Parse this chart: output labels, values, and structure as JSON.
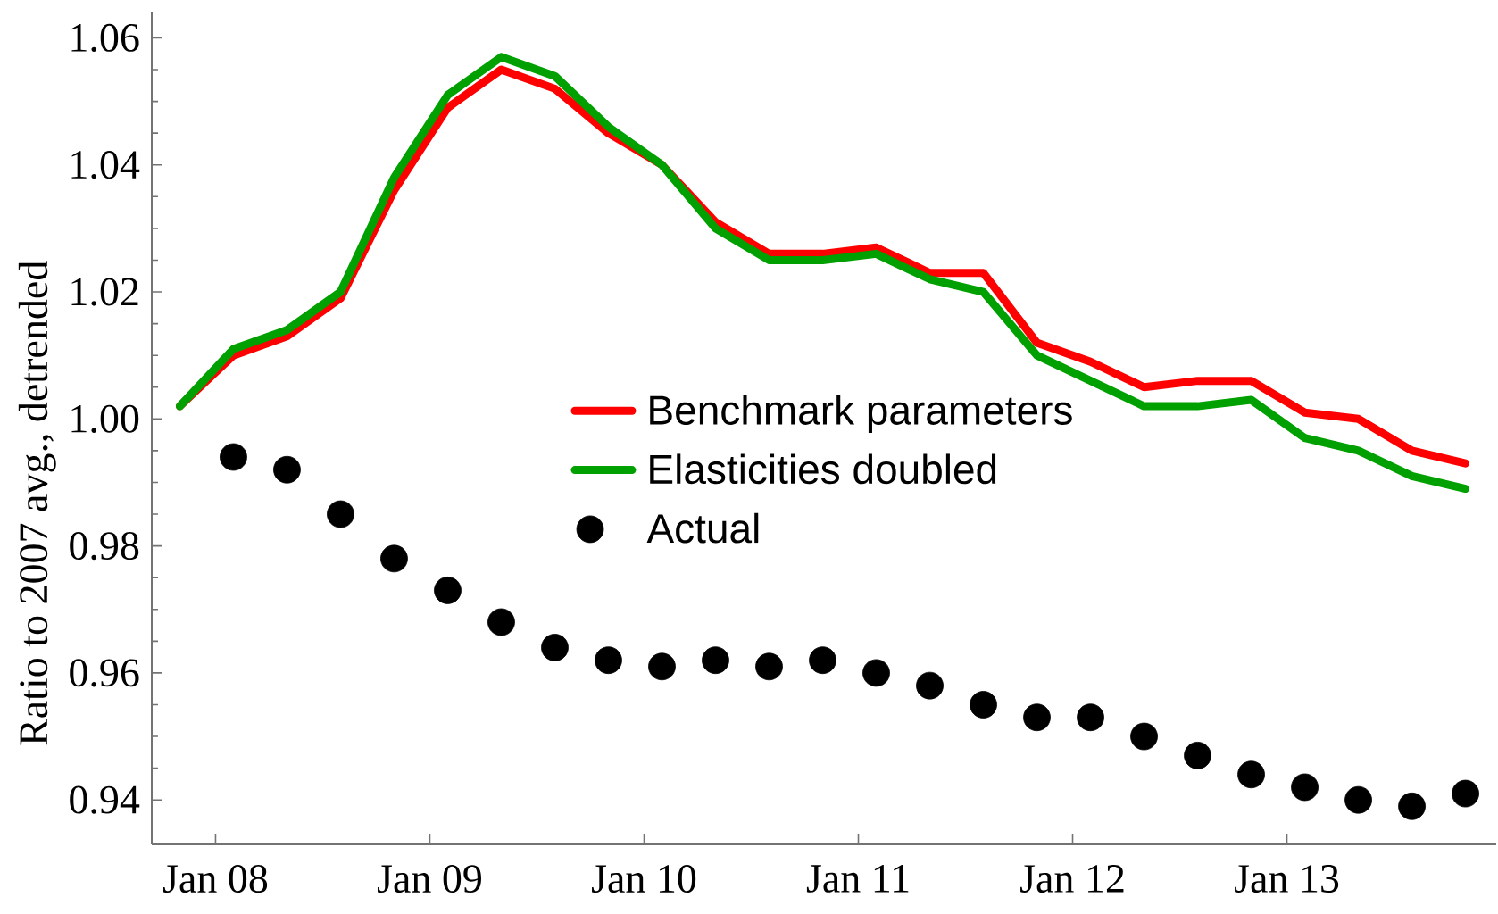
{
  "chart_data": {
    "type": "line",
    "ylabel": "Ratio to 2007 avg., detrended",
    "x": [
      "2007-11",
      "2008-02",
      "2008-05",
      "2008-08",
      "2008-11",
      "2009-02",
      "2009-05",
      "2009-08",
      "2009-11",
      "2010-02",
      "2010-05",
      "2010-08",
      "2010-11",
      "2011-02",
      "2011-05",
      "2011-08",
      "2011-11",
      "2012-02",
      "2012-05",
      "2012-08",
      "2012-11",
      "2013-02",
      "2013-05",
      "2013-08",
      "2013-11"
    ],
    "xlim": [
      "2007-09-14",
      "2013-12-23"
    ],
    "xticks": [
      {
        "value": "2008-01",
        "label": "Jan 08"
      },
      {
        "value": "2009-01",
        "label": "Jan 09"
      },
      {
        "value": "2010-01",
        "label": "Jan 10"
      },
      {
        "value": "2011-01",
        "label": "Jan 11"
      },
      {
        "value": "2012-01",
        "label": "Jan 12"
      },
      {
        "value": "2013-01",
        "label": "Jan 13"
      }
    ],
    "ylim": [
      0.933,
      1.064
    ],
    "yticks": [
      0.94,
      0.96,
      0.98,
      {
        "value": 1,
        "label": "1.00"
      },
      1.02,
      1.04,
      1.06
    ],
    "legend": "center",
    "series": [
      {
        "name": "Benchmark parameters",
        "type": "line",
        "color": "#ff0000",
        "values": [
          1.002,
          1.01,
          1.013,
          1.019,
          1.036,
          1.049,
          1.055,
          1.052,
          1.045,
          1.04,
          1.031,
          1.026,
          1.026,
          1.027,
          1.023,
          1.023,
          1.012,
          1.009,
          1.005,
          1.006,
          1.006,
          1.001,
          1.0,
          0.995,
          0.993
        ]
      },
      {
        "name": "Elasticities doubled",
        "type": "line",
        "color": "#00a000",
        "values": [
          1.002,
          1.011,
          1.014,
          1.02,
          1.038,
          1.051,
          1.057,
          1.054,
          1.046,
          1.04,
          1.03,
          1.025,
          1.025,
          1.026,
          1.022,
          1.02,
          1.01,
          1.006,
          1.002,
          1.002,
          1.003,
          0.997,
          0.995,
          0.991,
          0.989
        ]
      },
      {
        "name": "Actual",
        "type": "scatter",
        "color": "#000000",
        "marker": "circle",
        "x": [
          "2008-02",
          "2008-05",
          "2008-08",
          "2008-11",
          "2009-02",
          "2009-05",
          "2009-08",
          "2009-11",
          "2010-02",
          "2010-05",
          "2010-08",
          "2010-11",
          "2011-02",
          "2011-05",
          "2011-08",
          "2011-11",
          "2012-02",
          "2012-05",
          "2012-08",
          "2012-11",
          "2013-02",
          "2013-05",
          "2013-08",
          "2013-11"
        ],
        "values": [
          0.994,
          0.992,
          0.985,
          0.978,
          0.973,
          0.968,
          0.964,
          0.962,
          0.961,
          0.962,
          0.961,
          0.962,
          0.96,
          0.958,
          0.955,
          0.953,
          0.953,
          0.95,
          0.947,
          0.944,
          0.942,
          0.94,
          0.939,
          0.941
        ]
      }
    ]
  }
}
